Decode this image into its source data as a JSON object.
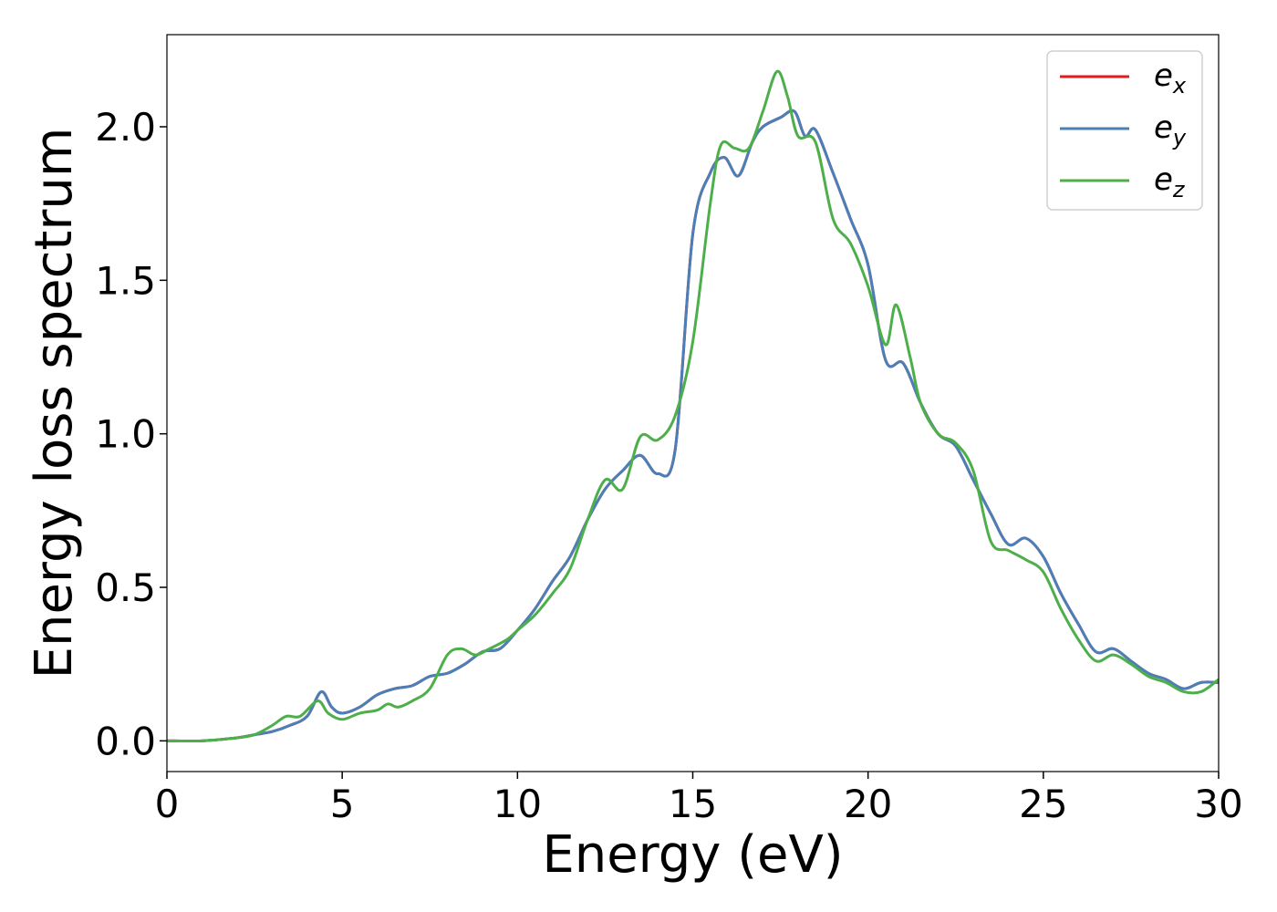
{
  "chart_data": {
    "type": "line",
    "title": "",
    "xlabel": "Energy (eV)",
    "ylabel": "Energy loss spectrum",
    "xlim": [
      0,
      30
    ],
    "ylim": [
      -0.1,
      2.3
    ],
    "xticks": [
      0,
      5,
      10,
      15,
      20,
      25,
      30
    ],
    "xtick_labels": [
      "0",
      "5",
      "10",
      "15",
      "20",
      "25",
      "30"
    ],
    "yticks": [
      0.0,
      0.5,
      1.0,
      1.5,
      2.0
    ],
    "ytick_labels": [
      "0.0",
      "0.5",
      "1.0",
      "1.5",
      "2.0"
    ],
    "grid": false,
    "legend": {
      "placement": "top-right"
    },
    "series": [
      {
        "name": "e",
        "sub": "x",
        "color": "#e41a1c",
        "x": [
          0,
          1,
          2,
          2.5,
          3,
          3.5,
          4,
          4.4,
          4.7,
          5,
          5.5,
          6,
          6.5,
          7,
          7.5,
          8,
          8.5,
          9,
          9.5,
          10,
          10.5,
          11,
          11.5,
          12,
          12.5,
          13,
          13.5,
          14,
          14.5,
          15,
          15.5,
          15.9,
          16.3,
          16.7,
          17,
          17.5,
          17.9,
          18.2,
          18.5,
          19,
          19.5,
          20,
          20.5,
          21,
          21.5,
          22,
          22.5,
          23,
          23.5,
          24,
          24.5,
          25,
          25.5,
          26,
          26.5,
          27,
          27.5,
          28,
          28.5,
          29,
          29.5,
          30
        ],
        "y": [
          0,
          0,
          0.01,
          0.02,
          0.03,
          0.05,
          0.08,
          0.16,
          0.11,
          0.09,
          0.11,
          0.15,
          0.17,
          0.18,
          0.21,
          0.22,
          0.25,
          0.29,
          0.3,
          0.36,
          0.43,
          0.52,
          0.6,
          0.72,
          0.82,
          0.88,
          0.93,
          0.87,
          0.95,
          1.65,
          1.85,
          1.9,
          1.84,
          1.95,
          2.0,
          2.03,
          2.05,
          1.97,
          1.99,
          1.85,
          1.7,
          1.55,
          1.24,
          1.23,
          1.1,
          1.0,
          0.96,
          0.85,
          0.74,
          0.64,
          0.66,
          0.6,
          0.48,
          0.38,
          0.29,
          0.3,
          0.26,
          0.22,
          0.2,
          0.17,
          0.19,
          0.19
        ]
      },
      {
        "name": "e",
        "sub": "y",
        "color": "#4a7fb8",
        "x": [
          0,
          1,
          2,
          2.5,
          3,
          3.5,
          4,
          4.4,
          4.7,
          5,
          5.5,
          6,
          6.5,
          7,
          7.5,
          8,
          8.5,
          9,
          9.5,
          10,
          10.5,
          11,
          11.5,
          12,
          12.5,
          13,
          13.5,
          14,
          14.5,
          15,
          15.5,
          15.9,
          16.3,
          16.7,
          17,
          17.5,
          17.9,
          18.2,
          18.5,
          19,
          19.5,
          20,
          20.5,
          21,
          21.5,
          22,
          22.5,
          23,
          23.5,
          24,
          24.5,
          25,
          25.5,
          26,
          26.5,
          27,
          27.5,
          28,
          28.5,
          29,
          29.5,
          30
        ],
        "y": [
          0,
          0,
          0.01,
          0.02,
          0.03,
          0.05,
          0.08,
          0.16,
          0.11,
          0.09,
          0.11,
          0.15,
          0.17,
          0.18,
          0.21,
          0.22,
          0.25,
          0.29,
          0.3,
          0.36,
          0.43,
          0.52,
          0.6,
          0.72,
          0.82,
          0.88,
          0.93,
          0.87,
          0.95,
          1.65,
          1.85,
          1.9,
          1.84,
          1.95,
          2.0,
          2.03,
          2.05,
          1.97,
          1.99,
          1.85,
          1.7,
          1.55,
          1.24,
          1.23,
          1.1,
          1.0,
          0.96,
          0.85,
          0.74,
          0.64,
          0.66,
          0.6,
          0.48,
          0.38,
          0.29,
          0.3,
          0.26,
          0.22,
          0.2,
          0.17,
          0.19,
          0.19
        ]
      },
      {
        "name": "e",
        "sub": "z",
        "color": "#4daf4a",
        "x": [
          0,
          1,
          2,
          2.5,
          3,
          3.4,
          3.8,
          4.3,
          4.6,
          5,
          5.5,
          6,
          6.3,
          6.6,
          7,
          7.5,
          8,
          8.4,
          8.8,
          9.2,
          9.7,
          10,
          10.5,
          11,
          11.5,
          12,
          12.5,
          13,
          13.5,
          14,
          14.5,
          15,
          15.5,
          15.8,
          16.2,
          16.6,
          17,
          17.4,
          17.7,
          18,
          18.5,
          19,
          19.5,
          20,
          20.5,
          20.8,
          21.2,
          21.5,
          22,
          22.5,
          23,
          23.5,
          24,
          24.5,
          25,
          25.5,
          26,
          26.5,
          27,
          27.5,
          28,
          28.5,
          29,
          29.5,
          30
        ],
        "y": [
          0,
          0,
          0.01,
          0.02,
          0.05,
          0.08,
          0.08,
          0.13,
          0.09,
          0.07,
          0.09,
          0.1,
          0.12,
          0.11,
          0.13,
          0.17,
          0.28,
          0.3,
          0.28,
          0.3,
          0.33,
          0.36,
          0.41,
          0.48,
          0.56,
          0.72,
          0.85,
          0.82,
          0.99,
          0.98,
          1.06,
          1.3,
          1.75,
          1.94,
          1.93,
          1.93,
          2.05,
          2.18,
          2.1,
          1.97,
          1.95,
          1.7,
          1.62,
          1.48,
          1.29,
          1.42,
          1.25,
          1.1,
          1.0,
          0.97,
          0.88,
          0.65,
          0.62,
          0.59,
          0.55,
          0.43,
          0.33,
          0.26,
          0.28,
          0.25,
          0.21,
          0.19,
          0.16,
          0.16,
          0.2
        ]
      }
    ]
  }
}
